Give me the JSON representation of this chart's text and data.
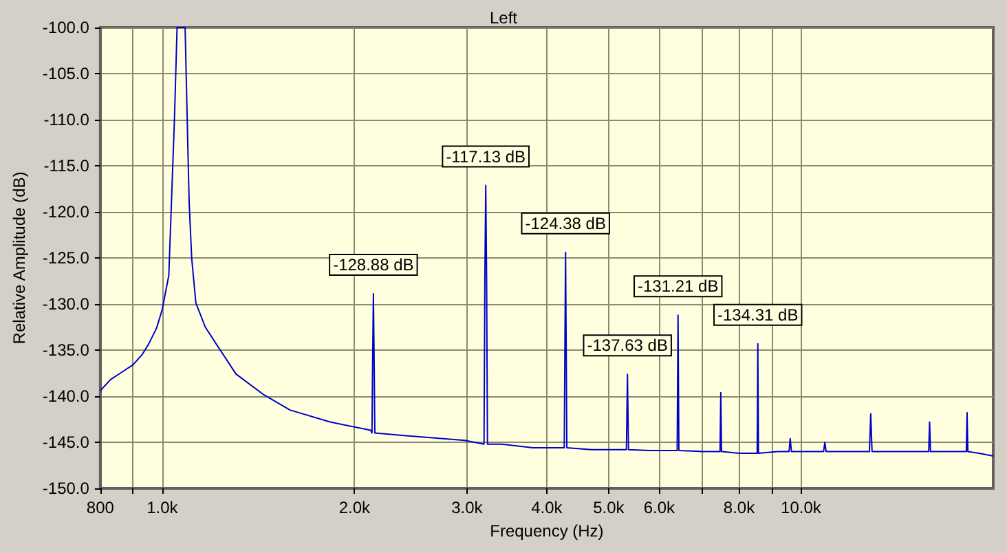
{
  "chart_data": {
    "type": "line",
    "title": "Left",
    "xlabel": "Frequency (Hz)",
    "ylabel": "Relative Amplitude (dB)",
    "log": "x",
    "grid": true,
    "marker": "none",
    "color": "#0000c8",
    "x": [
      800,
      830,
      860,
      900,
      930,
      953,
      980,
      1000,
      1024,
      1045,
      1055,
      1070,
      1086,
      1096,
      1102,
      1112,
      1129,
      1168,
      1214,
      1305,
      1439,
      1585,
      1832,
      2120,
      2130,
      2135,
      2141,
      2147,
      2152,
      2411,
      2976,
      3190,
      3200,
      3210,
      3220,
      3230,
      3400,
      3800,
      4260,
      4270,
      4280,
      4290,
      4300,
      4700,
      5330,
      5340,
      5350,
      5360,
      5370,
      5800,
      6400,
      6410,
      6420,
      6430,
      6440,
      7000,
      7470,
      7480,
      7490,
      7500,
      7510,
      8000,
      8540,
      8550,
      8560,
      8570,
      8580,
      9200,
      9580,
      9620,
      9660,
      10000,
      10850,
      10900,
      10950,
      12000,
      12800,
      12860,
      12920,
      14000,
      15850,
      15900,
      15950,
      17000,
      18150,
      18200,
      18250,
      19000,
      20000
    ],
    "values": [
      -139.4,
      -138.2,
      -137.5,
      -136.6,
      -135.5,
      -134.3,
      -132.6,
      -130.6,
      -126.9,
      -110,
      -100,
      -100,
      -100,
      -112,
      -119,
      -125,
      -129.9,
      -132.5,
      -134.3,
      -137.6,
      -139.8,
      -141.5,
      -142.8,
      -143.7,
      -144,
      -136.6,
      -128.88,
      -136.6,
      -144,
      -144.3,
      -144.8,
      -145.2,
      -127.2,
      -117.13,
      -127.2,
      -145.2,
      -145.2,
      -145.6,
      -145.6,
      -135,
      -124.38,
      -135,
      -145.6,
      -145.8,
      -145.8,
      -141.8,
      -137.63,
      -141.8,
      -145.8,
      -145.9,
      -145.9,
      -138.8,
      -131.21,
      -138.8,
      -145.9,
      -146,
      -146,
      -142.8,
      -139.6,
      -142.8,
      -146,
      -146.2,
      -146.2,
      -140.3,
      -134.31,
      -140.3,
      -146.2,
      -146,
      -146,
      -144.6,
      -146,
      -146,
      -146,
      -145,
      -146,
      -146,
      -146,
      -141.9,
      -146,
      -146,
      -146,
      -142.8,
      -146,
      -146,
      -146,
      -141.8,
      -146,
      -146.2,
      -146.5
    ],
    "xlim": [
      800,
      20000
    ],
    "ylim": [
      -150,
      -100
    ],
    "xticks": [
      {
        "value": 800,
        "label": "800"
      },
      {
        "value": 900,
        "label": null
      },
      {
        "value": 1000,
        "label": "1.0k"
      },
      {
        "value": 2000,
        "label": "2.0k"
      },
      {
        "value": 3000,
        "label": "3.0k"
      },
      {
        "value": 4000,
        "label": "4.0k"
      },
      {
        "value": 5000,
        "label": "5.0k"
      },
      {
        "value": 6000,
        "label": "6.0k"
      },
      {
        "value": 7000,
        "label": null
      },
      {
        "value": 8000,
        "label": "8.0k"
      },
      {
        "value": 9000,
        "label": null
      },
      {
        "value": 10000,
        "label": "10.0k"
      }
    ],
    "yticks": [
      {
        "value": -150,
        "label": "-150.0"
      },
      {
        "value": -145,
        "label": "-145.0"
      },
      {
        "value": -140,
        "label": "-140.0"
      },
      {
        "value": -135,
        "label": "-135.0"
      },
      {
        "value": -130,
        "label": "-130.0"
      },
      {
        "value": -125,
        "label": "-125.0"
      },
      {
        "value": -120,
        "label": "-120.0"
      },
      {
        "value": -115,
        "label": "-115.0"
      },
      {
        "value": -110,
        "label": "-110.0"
      },
      {
        "value": -105,
        "label": "-105.0"
      },
      {
        "value": -100,
        "label": "-100.0"
      }
    ],
    "annotations": [
      {
        "text": "-128.88 dB",
        "x": 2141,
        "y": -128.88
      },
      {
        "text": "-117.13 dB",
        "x": 3210,
        "y": -117.13
      },
      {
        "text": "-124.38 dB",
        "x": 4280,
        "y": -124.38
      },
      {
        "text": "-137.63 dB",
        "x": 5350,
        "y": -137.63
      },
      {
        "text": "-131.21 dB",
        "x": 6420,
        "y": -131.21
      },
      {
        "text": "-134.31 dB",
        "x": 8560,
        "y": -134.31
      }
    ]
  }
}
